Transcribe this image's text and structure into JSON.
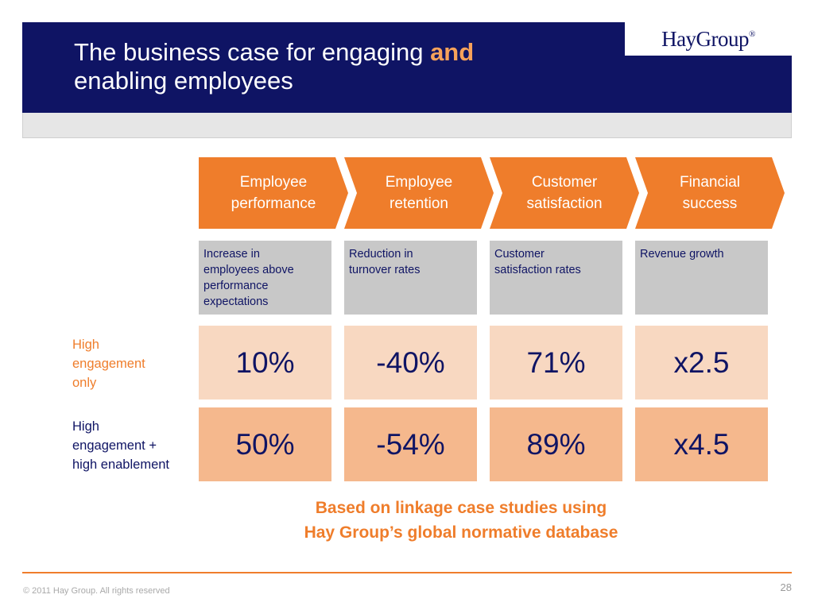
{
  "header": {
    "title_part1": "The business case for engaging ",
    "title_accent": "and",
    "title_part2": "enabling employees",
    "logo": "HayGroup",
    "logo_mark": "®"
  },
  "columns": [
    {
      "heading": "Employee\nperformance",
      "description": "Increase in\nemployees above\nperformance\nexpectations",
      "high_engagement_only": "10%",
      "high_engagement_and_enablement": "50%"
    },
    {
      "heading": "Employee\nretention",
      "description": "Reduction in\nturnover rates",
      "high_engagement_only": "-40%",
      "high_engagement_and_enablement": "-54%"
    },
    {
      "heading": "Customer\nsatisfaction",
      "description": "Customer\nsatisfaction rates",
      "high_engagement_only": "71%",
      "high_engagement_and_enablement": "89%"
    },
    {
      "heading": "Financial\nsuccess",
      "description": "Revenue growth",
      "high_engagement_only": "x2.5",
      "high_engagement_and_enablement": "x4.5"
    }
  ],
  "row_labels": {
    "row1": "High\nengagement\nonly",
    "row2": "High\nengagement +\nhigh enablement"
  },
  "note": "Based on linkage case studies using\nHay Group’s global normative database",
  "footer": {
    "copyright": "© 2011 Hay Group. All rights reserved",
    "page_number": "28"
  },
  "colors": {
    "navy": "#0f1464",
    "orange": "#ef7d2b",
    "light_peach": "#f8d8c1",
    "peach": "#f5b88d",
    "grey": "#c8c8c8"
  }
}
